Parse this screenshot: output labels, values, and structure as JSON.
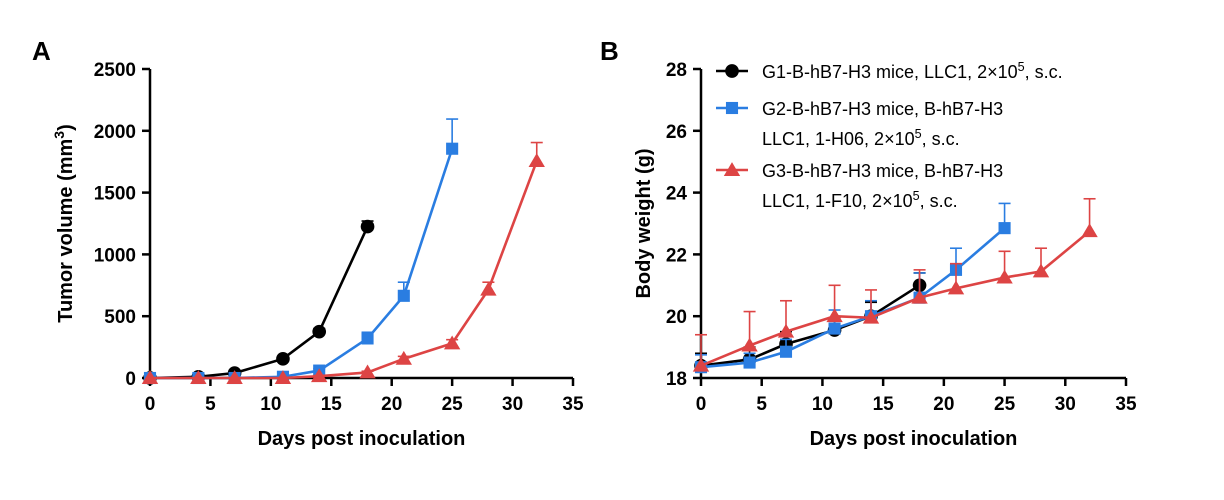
{
  "legend": [
    {
      "lines": [
        [
          "G1-B-hB7-H3 mice, LLC1, 2×10",
          "5",
          ", s.c."
        ]
      ],
      "color": "#000000",
      "marker": "circle"
    },
    {
      "lines": [
        [
          "G2-B-hB7-H3 mice, B-hB7-H3"
        ],
        [
          "LLC1, 1-H06, 2×10",
          "5",
          ", s.c."
        ]
      ],
      "color": "#2a7de1",
      "marker": "square"
    },
    {
      "lines": [
        [
          "G3-B-hB7-H3 mice, B-hB7-H3"
        ],
        [
          "LLC1, 1-F10, 2×10",
          "5",
          ", s.c."
        ]
      ],
      "color": "#dd4444",
      "marker": "triangle"
    }
  ],
  "chart_data": [
    {
      "panel": "A",
      "type": "line",
      "xlabel": "Days post inoculation",
      "ylabel": [
        "Tumor volume (mm",
        "3",
        ")"
      ],
      "xlim": [
        0,
        35
      ],
      "ylim": [
        0,
        2500
      ],
      "xticks": [
        "0",
        "5",
        "10",
        "15",
        "20",
        "25",
        "30",
        "35"
      ],
      "yticks": [
        "0",
        "500",
        "1000",
        "1500",
        "2000",
        "2500"
      ],
      "series": [
        {
          "color": "#000000",
          "marker": "circle",
          "x": [
            0,
            4,
            7,
            11,
            14,
            18
          ],
          "y": [
            0,
            10,
            40,
            155,
            375,
            1225
          ],
          "err": [
            0,
            5,
            8,
            15,
            25,
            45
          ]
        },
        {
          "color": "#2a7de1",
          "marker": "square",
          "x": [
            0,
            4,
            7,
            11,
            14,
            18,
            21,
            25
          ],
          "y": [
            0,
            0,
            0,
            10,
            60,
            320,
            665,
            1855
          ],
          "err": [
            0,
            0,
            0,
            5,
            15,
            50,
            110,
            240
          ]
        },
        {
          "color": "#dd4444",
          "marker": "triangle",
          "x": [
            0,
            4,
            7,
            11,
            14,
            18,
            21,
            25,
            28,
            32
          ],
          "y": [
            0,
            0,
            0,
            0,
            15,
            45,
            155,
            280,
            715,
            1755
          ],
          "err": [
            0,
            0,
            0,
            0,
            5,
            10,
            20,
            30,
            60,
            150
          ]
        }
      ]
    },
    {
      "panel": "B",
      "type": "line",
      "xlabel": "Days post inoculation",
      "ylabel": [
        "Body weight (g)"
      ],
      "xlim": [
        0,
        35
      ],
      "ylim": [
        18,
        28
      ],
      "xticks": [
        "0",
        "5",
        "10",
        "15",
        "20",
        "25",
        "30",
        "35"
      ],
      "yticks": [
        "18",
        "20",
        "22",
        "24",
        "26",
        "28"
      ],
      "series": [
        {
          "color": "#000000",
          "marker": "circle",
          "x": [
            0,
            4,
            7,
            11,
            14,
            18
          ],
          "y": [
            18.4,
            18.6,
            19.1,
            19.55,
            20.0,
            21.0
          ],
          "err": [
            0.4,
            0.4,
            0.4,
            0.4,
            0.45,
            0.4
          ]
        },
        {
          "color": "#2a7de1",
          "marker": "square",
          "x": [
            0,
            4,
            7,
            11,
            14,
            18,
            21,
            25
          ],
          "y": [
            18.35,
            18.5,
            18.85,
            19.6,
            20.0,
            20.6,
            21.5,
            22.85
          ],
          "err": [
            0.4,
            0.3,
            0.4,
            0.6,
            0.5,
            0.8,
            0.7,
            0.8
          ]
        },
        {
          "color": "#dd4444",
          "marker": "triangle",
          "x": [
            0,
            4,
            7,
            11,
            14,
            18,
            21,
            25,
            28,
            32
          ],
          "y": [
            18.4,
            19.05,
            19.5,
            20.0,
            19.95,
            20.6,
            20.9,
            21.25,
            21.45,
            22.75
          ],
          "err": [
            1.0,
            1.1,
            1.0,
            1.0,
            0.9,
            0.9,
            0.8,
            0.85,
            0.75,
            1.05
          ]
        }
      ]
    }
  ]
}
